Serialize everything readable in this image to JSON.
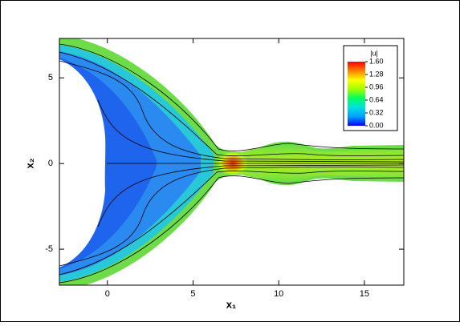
{
  "chart_data": {
    "type": "contour",
    "xlabel": "x₁",
    "ylabel": "x₂",
    "xlim": [
      -2.8,
      17.3
    ],
    "ylim": [
      -7.1,
      7.3
    ],
    "xticks": [
      0,
      5,
      10,
      15
    ],
    "yticks": [
      -5,
      0,
      5
    ],
    "colorbar": {
      "title": "|u|",
      "lim": [
        0,
        1.6
      ],
      "colormap": [
        "#0000ff",
        "#00a0ff",
        "#00e0e0",
        "#00ff60",
        "#a0ff00",
        "#ffff00",
        "#ff8000",
        "#ff0000"
      ],
      "ticks": [
        {
          "value": 1.6,
          "label": "1.60"
        },
        {
          "value": 1.28,
          "label": "1.28"
        },
        {
          "value": 0.96,
          "label": "0.96"
        },
        {
          "value": 0.64,
          "label": "0.64"
        },
        {
          "value": 0.32,
          "label": "0.32"
        },
        {
          "value": 0,
          "label": "0.00"
        }
      ]
    }
  }
}
